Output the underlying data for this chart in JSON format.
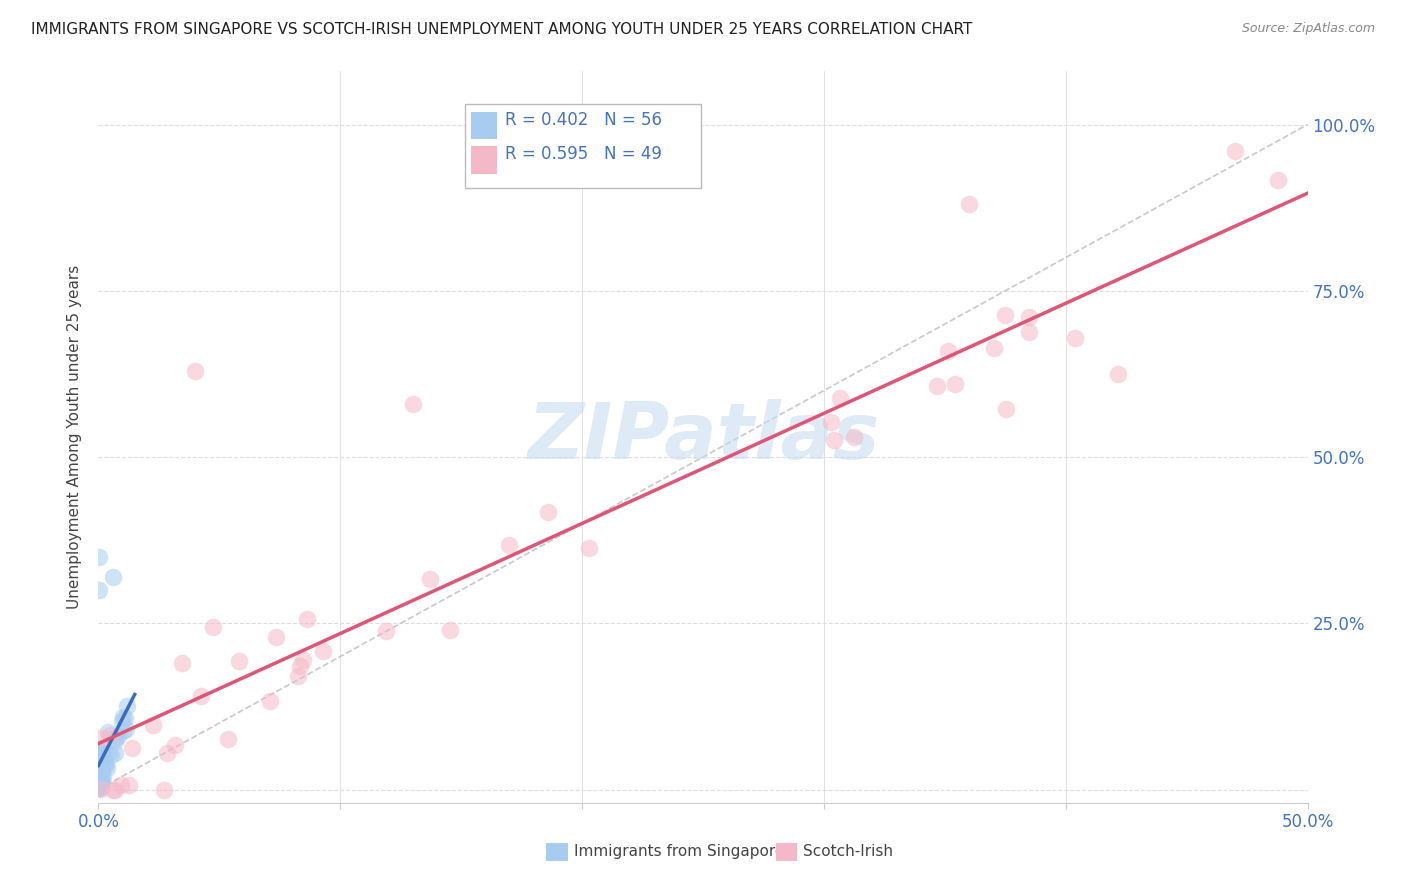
{
  "title": "IMMIGRANTS FROM SINGAPORE VS SCOTCH-IRISH UNEMPLOYMENT AMONG YOUTH UNDER 25 YEARS CORRELATION CHART",
  "source": "Source: ZipAtlas.com",
  "ylabel": "Unemployment Among Youth under 25 years",
  "watermark": "ZIPatlas",
  "legend_labels": [
    "Immigrants from Singapore",
    "Scotch-Irish"
  ],
  "r_singapore": 0.402,
  "n_singapore": 56,
  "r_scotch": 0.595,
  "n_scotch": 49,
  "xlim": [
    0.0,
    0.5
  ],
  "ylim": [
    -0.02,
    1.08
  ],
  "xtick_positions": [
    0.0,
    0.1,
    0.2,
    0.3,
    0.4,
    0.5
  ],
  "xtick_labels": [
    "0.0%",
    "",
    "",
    "",
    "",
    "50.0%"
  ],
  "ytick_positions": [
    0.0,
    0.25,
    0.5,
    0.75,
    1.0
  ],
  "ytick_labels": [
    "",
    "25.0%",
    "50.0%",
    "75.0%",
    "100.0%"
  ],
  "color_singapore": "#A8CCF0",
  "color_scotch": "#F5B8C8",
  "line_singapore": "#3A6BBF",
  "line_scotch": "#E05575",
  "diag_color": "#BBBBBB",
  "grid_color": "#DDDDDD"
}
